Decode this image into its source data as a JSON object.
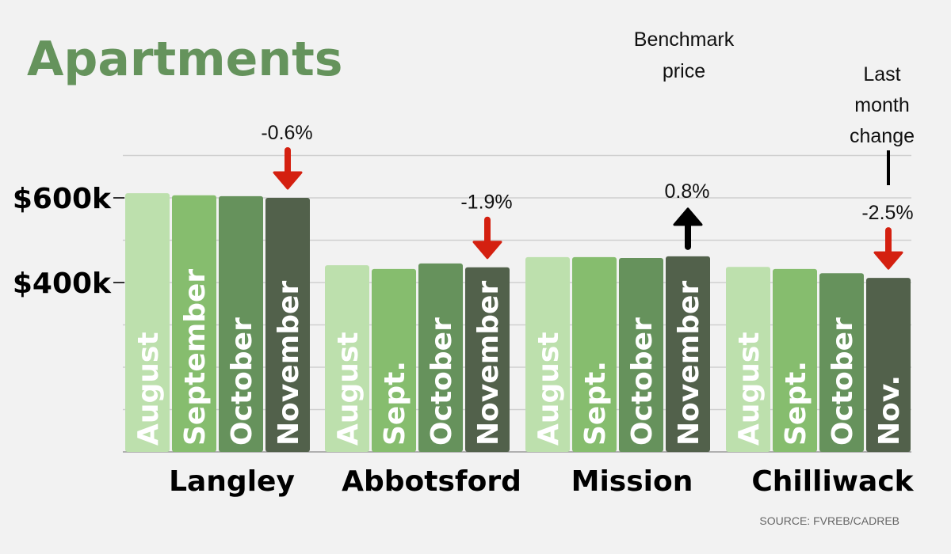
{
  "chart_data": {
    "type": "bar",
    "title": "Apartments",
    "ylabel": "Benchmark price",
    "ylim": [
      0,
      700
    ],
    "yunit": "thousand CAD",
    "yticks": [
      {
        "value": 600,
        "label": "$600k"
      },
      {
        "value": 400,
        "label": "$400k"
      }
    ],
    "grid": true,
    "annotations": {
      "benchmark": "Benchmark price",
      "change": "Last month change"
    },
    "source": "SOURCE: FVREB/CADREB",
    "series_colors": [
      "#bde0ad",
      "#86bd6e",
      "#66925c",
      "#52614b"
    ],
    "groups": [
      {
        "name": "Langley",
        "labels": [
          "August",
          "September",
          "October",
          "November"
        ],
        "values": [
          611,
          606,
          604,
          600
        ],
        "change": "-0.6%",
        "direction": "down"
      },
      {
        "name": "Abbotsford",
        "labels": [
          "August",
          "Sept.",
          "October",
          "November"
        ],
        "values": [
          441,
          432,
          445,
          436
        ],
        "change": "-1.9%",
        "direction": "down"
      },
      {
        "name": "Mission",
        "labels": [
          "August",
          "Sept.",
          "October",
          "November"
        ],
        "values": [
          460,
          460,
          458,
          462
        ],
        "change": "0.8%",
        "direction": "up"
      },
      {
        "name": "Chilliwack",
        "labels": [
          "August",
          "Sept.",
          "October",
          "Nov."
        ],
        "values": [
          437,
          432,
          422,
          411
        ],
        "change": "-2.5%",
        "direction": "down"
      }
    ],
    "arrow_colors": {
      "down": "#d42010",
      "up": "#000000"
    }
  }
}
